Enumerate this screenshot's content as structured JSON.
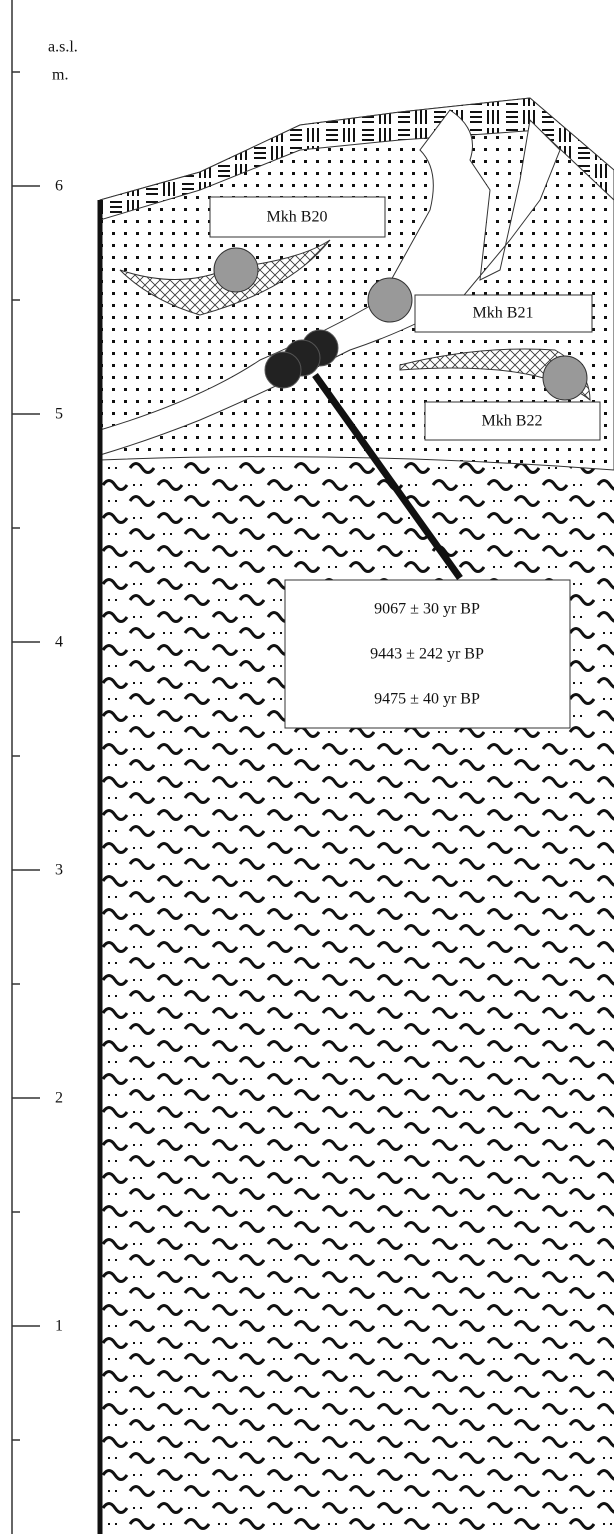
{
  "axis": {
    "unit": [
      "a.s.l.",
      "m."
    ],
    "ticks": [
      6,
      5,
      4,
      3,
      2,
      1
    ]
  },
  "samples": [
    "Mkh B20",
    "Mkh B21",
    "Mkh B22"
  ],
  "dates": [
    "9067 ± 30 yr BP",
    "9443 ± 242 yr BP",
    "9475 ± 40 yr BP"
  ]
}
